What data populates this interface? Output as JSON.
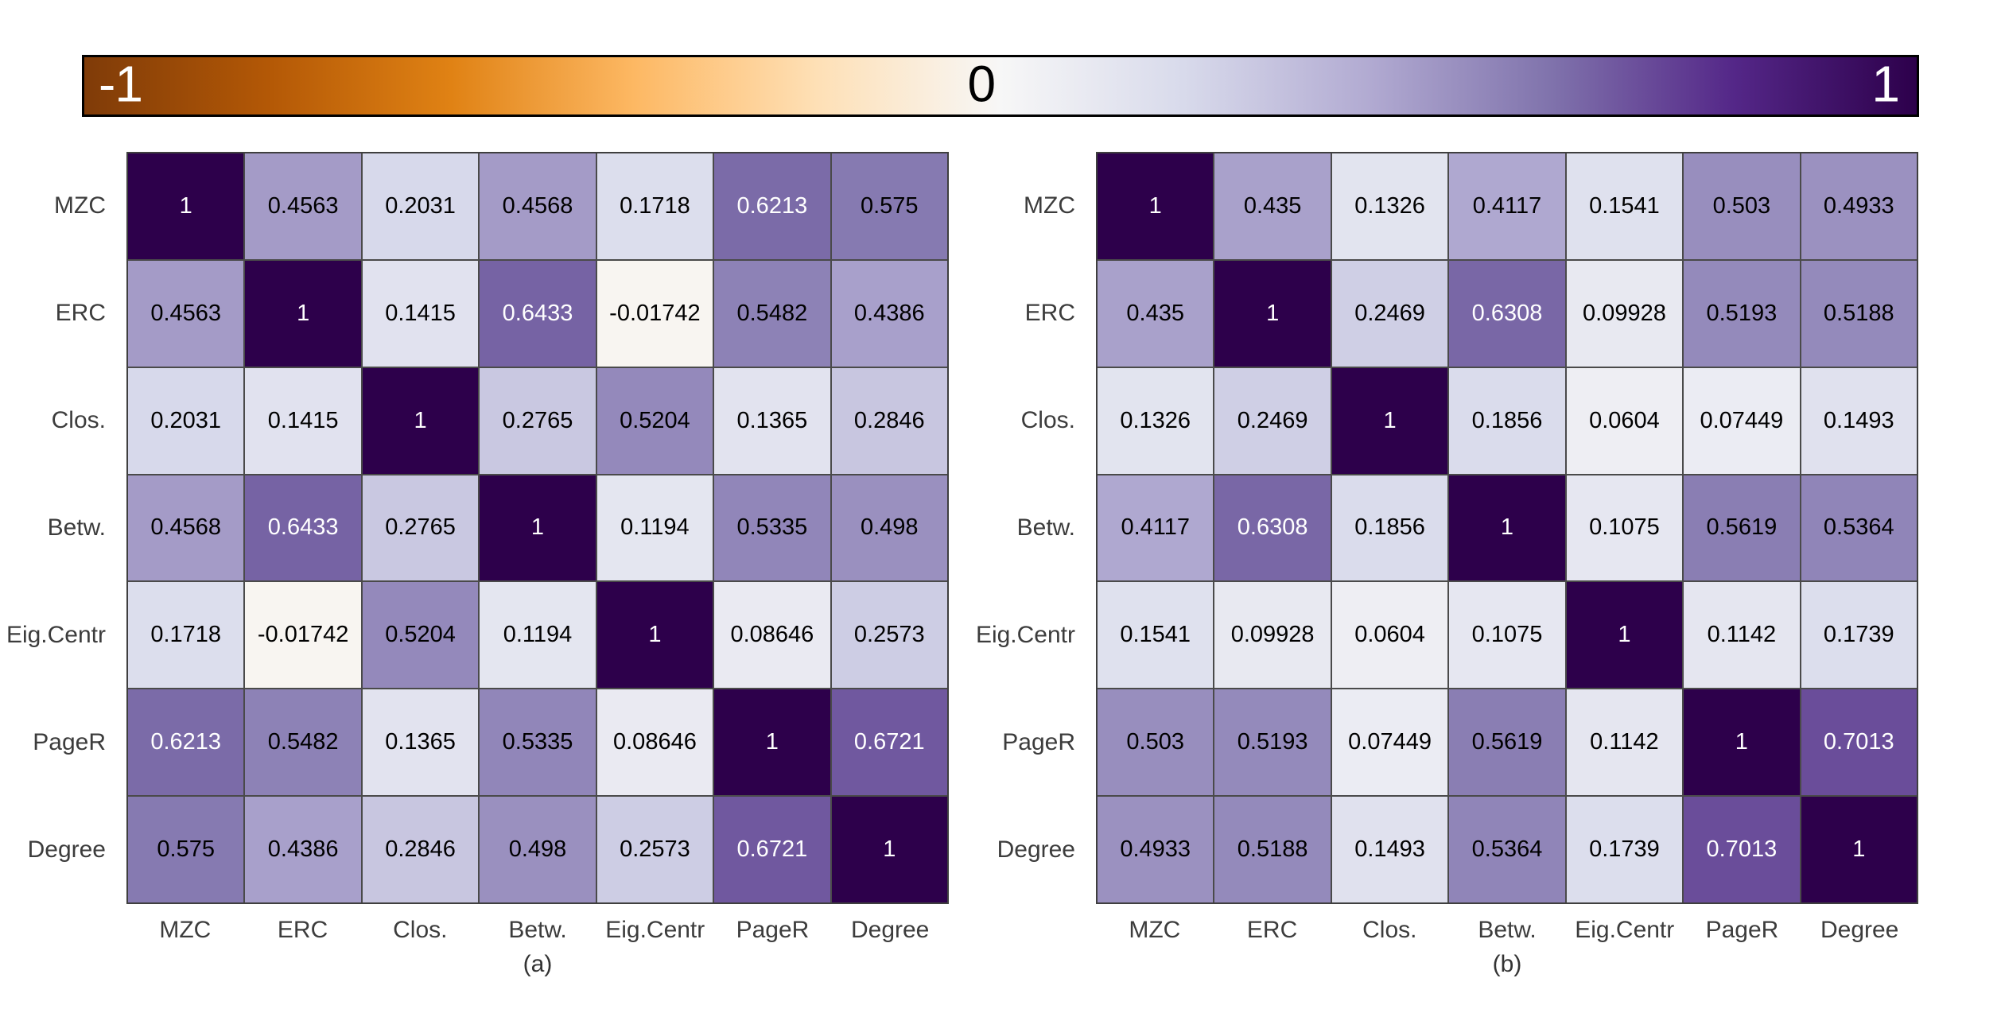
{
  "colorbar": {
    "min_label": "-1",
    "mid_label": "0",
    "max_label": "1",
    "range": [
      -1,
      1
    ],
    "gradient_stops": [
      "#7f3b08",
      "#b35806",
      "#e08214",
      "#fdb863",
      "#fee0b6",
      "#f7f7f7",
      "#d8daeb",
      "#b2abd2",
      "#8073ac",
      "#542788",
      "#2d004b"
    ],
    "border_color": "#000000"
  },
  "style": {
    "grid_line_color": "#4a4a4a",
    "cell_text_dark": "#000000",
    "cell_text_light": "#ffffff",
    "axis_label_color": "#3c3c3c"
  },
  "chart_data": [
    {
      "type": "heatmap",
      "caption": "(a)",
      "colormap": "PuOr diverging (orange -1, white 0, purple +1)",
      "value_range": [
        -1,
        1
      ],
      "labels": [
        "MZC",
        "ERC",
        "Clos.",
        "Betw.",
        "Eig.Centr",
        "PageR",
        "Degree"
      ],
      "matrix": [
        [
          1,
          0.4563,
          0.2031,
          0.4568,
          0.1718,
          0.6213,
          0.575
        ],
        [
          0.4563,
          1,
          0.1415,
          0.6433,
          -0.01742,
          0.5482,
          0.4386
        ],
        [
          0.2031,
          0.1415,
          1,
          0.2765,
          0.5204,
          0.1365,
          0.2846
        ],
        [
          0.4568,
          0.6433,
          0.2765,
          1,
          0.1194,
          0.5335,
          0.498
        ],
        [
          0.1718,
          -0.01742,
          0.5204,
          0.1194,
          1,
          0.08646,
          0.2573
        ],
        [
          0.6213,
          0.5482,
          0.1365,
          0.5335,
          0.08646,
          1,
          0.6721
        ],
        [
          0.575,
          0.4386,
          0.2846,
          0.498,
          0.2573,
          0.6721,
          1
        ]
      ]
    },
    {
      "type": "heatmap",
      "caption": "(b)",
      "colormap": "PuOr diverging (orange -1, white 0, purple +1)",
      "value_range": [
        -1,
        1
      ],
      "labels": [
        "MZC",
        "ERC",
        "Clos.",
        "Betw.",
        "Eig.Centr",
        "PageR",
        "Degree"
      ],
      "matrix": [
        [
          1,
          0.435,
          0.1326,
          0.4117,
          0.1541,
          0.503,
          0.4933
        ],
        [
          0.435,
          1,
          0.2469,
          0.6308,
          0.09928,
          0.5193,
          0.5188
        ],
        [
          0.1326,
          0.2469,
          1,
          0.1856,
          0.0604,
          0.07449,
          0.1493
        ],
        [
          0.4117,
          0.6308,
          0.1856,
          1,
          0.1075,
          0.5619,
          0.5364
        ],
        [
          0.1541,
          0.09928,
          0.0604,
          0.1075,
          1,
          0.1142,
          0.1739
        ],
        [
          0.503,
          0.5193,
          0.07449,
          0.5619,
          0.1142,
          1,
          0.7013
        ],
        [
          0.4933,
          0.5188,
          0.1493,
          0.5364,
          0.1739,
          0.7013,
          1
        ]
      ]
    }
  ]
}
